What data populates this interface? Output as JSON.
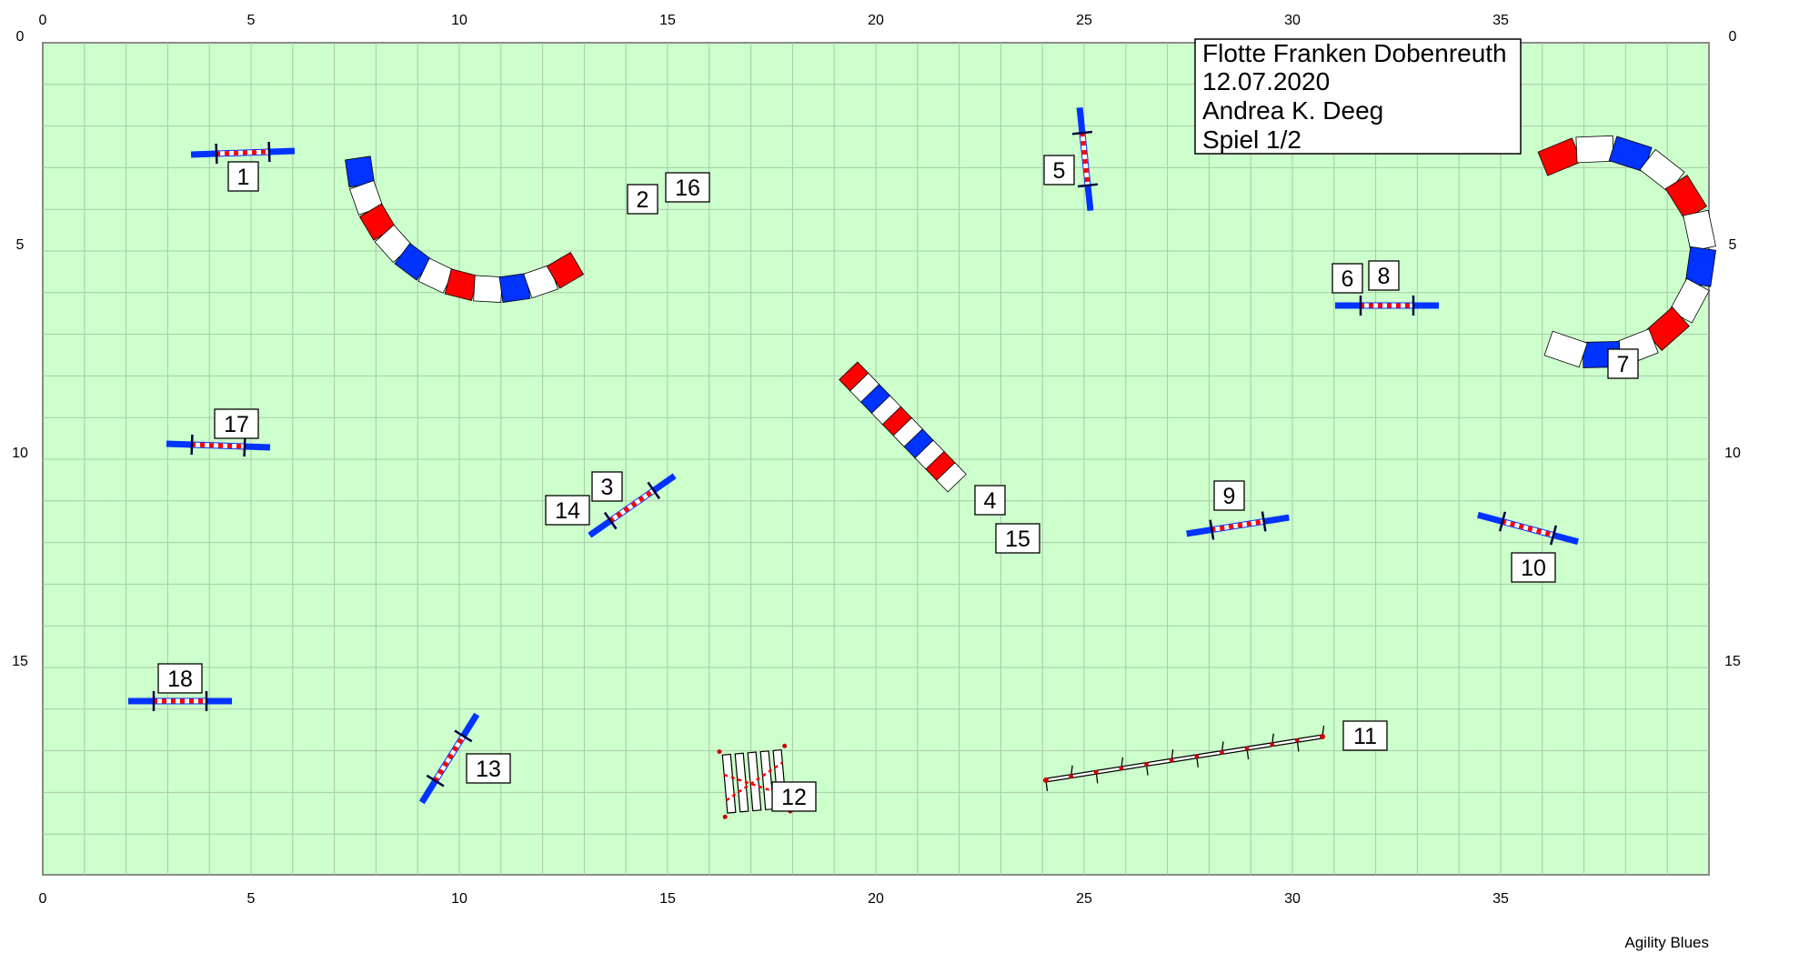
{
  "course": {
    "axis": {
      "x_ticks": [
        "0",
        "5",
        "10",
        "15",
        "20",
        "25",
        "30",
        "35"
      ],
      "y_ticks": [
        "0",
        "5",
        "10",
        "15"
      ]
    },
    "info": {
      "line1": "Flotte Franken Dobenreuth",
      "line2": "12.07.2020",
      "line3": "Andrea K. Deeg",
      "line4": "Spiel 1/2"
    },
    "footer": "Agility Blues",
    "numbers": {
      "n1": "1",
      "n2": "2",
      "n16": "16",
      "n3": "3",
      "n14": "14",
      "n4": "4",
      "n15": "15",
      "n5": "5",
      "n6": "6",
      "n8": "8",
      "n7": "7",
      "n9": "9",
      "n10": "10",
      "n11": "11",
      "n12": "12",
      "n13": "13",
      "n17": "17",
      "n18": "18"
    },
    "colors": {
      "field": "#ccffcc",
      "grid": "#a8c8a8",
      "blue": "#0033ff",
      "red": "#ff0000",
      "border": "#8a8a8a"
    }
  }
}
